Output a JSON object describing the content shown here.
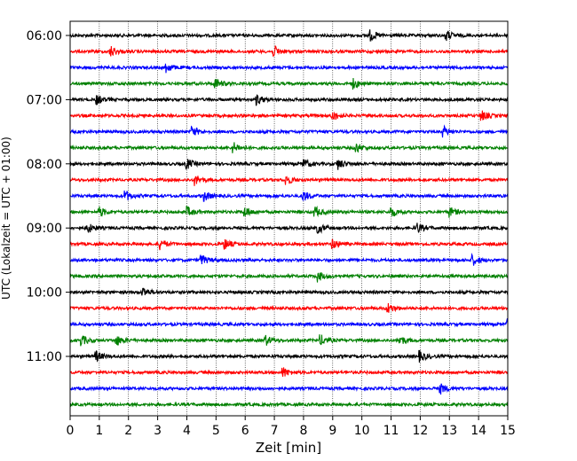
{
  "chart_data": {
    "type": "line",
    "title": "",
    "xlabel": "Zeit  [min]",
    "ylabel": "UTC (Lokalzeit = UTC + 01:00)",
    "xlim": [
      0,
      15
    ],
    "x_ticks": [
      0,
      1,
      2,
      3,
      4,
      5,
      6,
      7,
      8,
      9,
      10,
      11,
      12,
      13,
      14,
      15
    ],
    "x_tick_labels": [
      "0",
      "1",
      "2",
      "3",
      "4",
      "5",
      "6",
      "7",
      "8",
      "9",
      "10",
      "11",
      "12",
      "13",
      "14",
      "15"
    ],
    "y_tick_labels": [
      "06:00",
      "07:00",
      "08:00",
      "09:00",
      "10:00",
      "11:00"
    ],
    "grid": "vertical dotted lines at each minute",
    "trace_interval_minutes": 15,
    "colors_cycle": [
      "#000000",
      "#ff0000",
      "#0000ff",
      "#008000"
    ],
    "rows": [
      {
        "label": "06:00",
        "color": "#000000",
        "events": [
          10.3,
          12.9
        ]
      },
      {
        "label": "06:15",
        "color": "#ff0000",
        "events": [
          1.4,
          7.0
        ]
      },
      {
        "label": "06:30",
        "color": "#0000ff",
        "events": [
          3.3
        ]
      },
      {
        "label": "06:45",
        "color": "#008000",
        "events": [
          5.0,
          9.7
        ]
      },
      {
        "label": "07:00",
        "color": "#000000",
        "events": [
          0.9,
          6.4
        ]
      },
      {
        "label": "07:15",
        "color": "#ff0000",
        "events": [
          9.0,
          14.1
        ]
      },
      {
        "label": "07:30",
        "color": "#0000ff",
        "events": [
          4.2,
          12.8
        ]
      },
      {
        "label": "07:45",
        "color": "#008000",
        "events": [
          5.6,
          9.8
        ]
      },
      {
        "label": "08:00",
        "color": "#000000",
        "events": [
          4.0,
          8.0,
          9.2
        ]
      },
      {
        "label": "08:15",
        "color": "#ff0000",
        "events": [
          4.3,
          7.4
        ]
      },
      {
        "label": "08:30",
        "color": "#0000ff",
        "events": [
          1.9,
          4.6,
          8.0
        ]
      },
      {
        "label": "08:45",
        "color": "#008000",
        "events": [
          1.0,
          4.0,
          6.0,
          8.4,
          11.0,
          13.0
        ]
      },
      {
        "label": "09:00",
        "color": "#000000",
        "events": [
          0.6,
          8.5,
          11.9
        ]
      },
      {
        "label": "09:15",
        "color": "#ff0000",
        "events": [
          3.1,
          5.3,
          9.0
        ]
      },
      {
        "label": "09:30",
        "color": "#0000ff",
        "events": [
          4.5,
          13.8
        ]
      },
      {
        "label": "09:45",
        "color": "#008000",
        "events": [
          8.5
        ]
      },
      {
        "label": "10:00",
        "color": "#000000",
        "events": [
          2.5
        ]
      },
      {
        "label": "10:15",
        "color": "#ff0000",
        "events": [
          10.9
        ]
      },
      {
        "label": "10:30",
        "color": "#0000ff",
        "events": [
          15.0
        ]
      },
      {
        "label": "10:45",
        "color": "#008000",
        "events": [
          0.4,
          1.6,
          6.7,
          8.6,
          11.3
        ]
      },
      {
        "label": "11:00",
        "color": "#000000",
        "events": [
          0.9,
          12.0
        ]
      },
      {
        "label": "11:15",
        "color": "#ff0000",
        "events": [
          7.3
        ]
      },
      {
        "label": "11:30",
        "color": "#0000ff",
        "events": [
          12.7
        ]
      },
      {
        "label": "11:45",
        "color": "#008000",
        "events": []
      }
    ]
  }
}
